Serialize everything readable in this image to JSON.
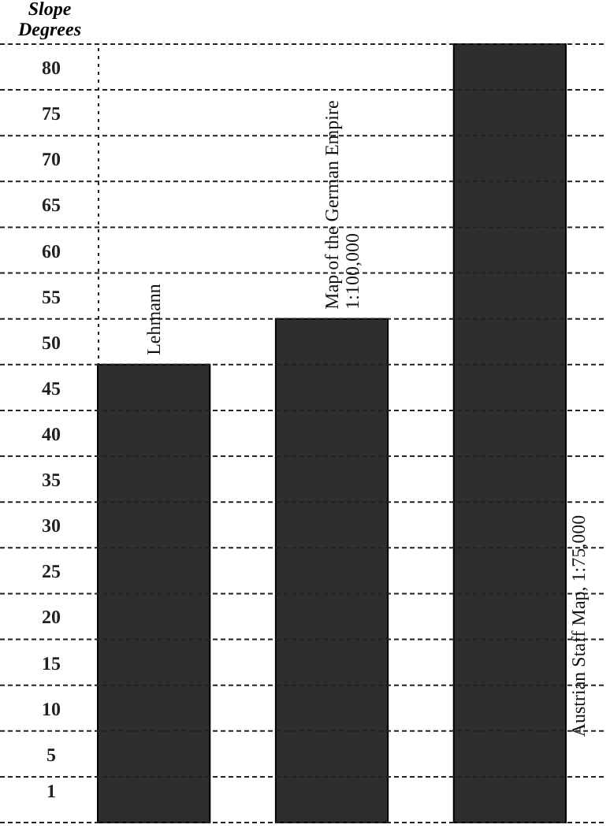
{
  "chart_data": {
    "type": "bar",
    "ylabel": "Slope\nDegrees",
    "categories": [
      "Lehmann",
      "Map of the German Empire\n1:100,000",
      "Austrian Staff Map, 1:75,000"
    ],
    "values": [
      50,
      55,
      85
    ],
    "base": [
      -2.5,
      -2.5,
      -2.5
    ],
    "color": "#2e2e2e",
    "ylim": [
      -2.5,
      82.5
    ],
    "yticks": [
      {
        "value": -2.5,
        "label": null
      },
      1,
      {
        "value": 2.5,
        "label": null
      },
      5,
      {
        "value": 7.5,
        "label": null
      },
      10,
      {
        "value": 12.5,
        "label": null
      },
      15,
      {
        "value": 17.5,
        "label": null
      },
      20,
      {
        "value": 22.5,
        "label": null
      },
      25,
      {
        "value": 27.5,
        "label": null
      },
      30,
      {
        "value": 32.5,
        "label": null
      },
      35,
      {
        "value": 37.5,
        "label": null
      },
      40,
      {
        "value": 42.5,
        "label": null
      },
      45,
      {
        "value": 47.5,
        "label": null
      },
      50,
      {
        "value": 52.5,
        "label": null
      },
      55,
      {
        "value": 57.5,
        "label": null
      },
      60,
      {
        "value": 62.5,
        "label": null
      },
      65,
      {
        "value": 67.5,
        "label": null
      },
      70,
      {
        "value": 72.5,
        "label": null
      },
      75,
      {
        "value": 77.5,
        "label": null
      },
      80,
      {
        "value": 82.5,
        "label": null
      }
    ],
    "grid": "y"
  }
}
